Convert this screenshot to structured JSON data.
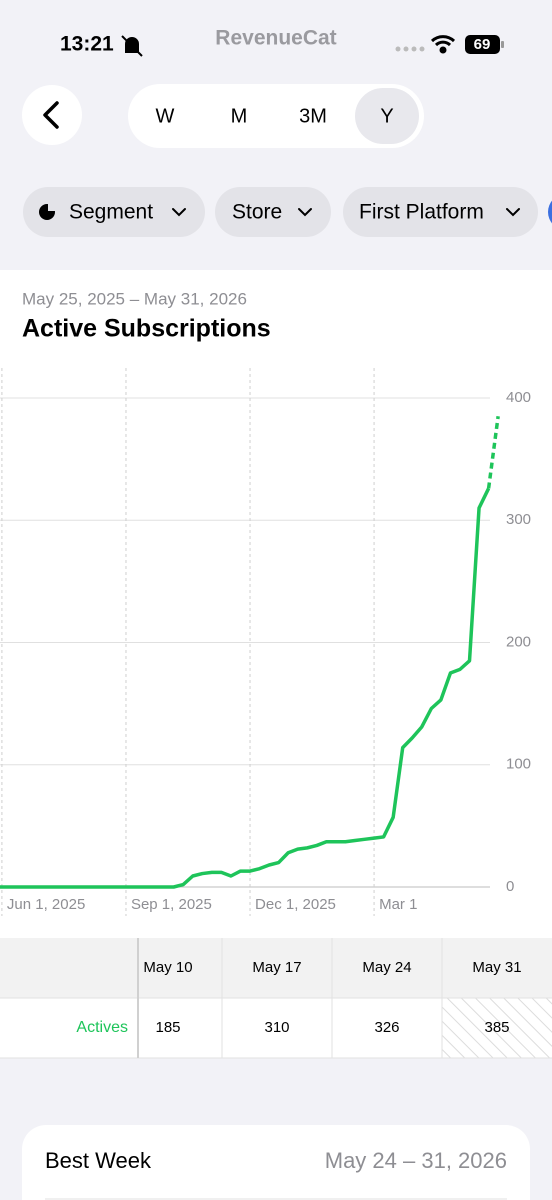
{
  "status_bar": {
    "time": "13:21",
    "app": "RevenueCat",
    "battery": "69"
  },
  "period_tabs": [
    "W",
    "M",
    "3M",
    "Y"
  ],
  "selected_period": 3,
  "filters": [
    "Segment",
    "Store",
    "First Platform"
  ],
  "chart_data": {
    "type": "line",
    "subtitle": "May 25, 2025 – May 31, 2026",
    "title": "Active Subscriptions",
    "x": [
      0,
      1,
      2,
      3,
      4,
      5,
      6,
      7,
      8,
      9,
      10,
      11,
      12,
      13,
      14,
      15,
      16,
      17,
      18,
      19,
      20,
      21,
      22,
      23,
      24,
      25,
      26,
      27,
      28,
      29,
      30,
      31,
      32,
      33,
      34,
      35,
      36,
      37,
      38,
      39,
      40,
      41,
      42,
      43,
      44,
      45,
      46,
      47,
      48,
      49,
      50,
      51,
      52,
      53
    ],
    "series": [
      {
        "color": "#1ec45a",
        "values": [
          0,
          0,
          0,
          0,
          0,
          0,
          0,
          0,
          0,
          0,
          0,
          0,
          0,
          0,
          0,
          0,
          0,
          0,
          0,
          0,
          2,
          9,
          11,
          12,
          12,
          9,
          13,
          13,
          15,
          18,
          20,
          28,
          31,
          32,
          34,
          37,
          37,
          37,
          38,
          39,
          40,
          41,
          57,
          114,
          122,
          131,
          146,
          153,
          175,
          178,
          185,
          310,
          326,
          385
        ]
      }
    ],
    "xlim": [
      0.8,
      53.3
    ],
    "xticks": [
      {
        "value": 1,
        "label": "Jun 1, 2025"
      },
      {
        "value": 14,
        "label": "Sep 1, 2025"
      },
      {
        "value": 27,
        "label": "Dec 1, 2025"
      },
      {
        "value": 40,
        "label": "Mar 1"
      }
    ],
    "ylim": [
      0,
      420
    ],
    "yticks": [
      0,
      100,
      200,
      300,
      400
    ],
    "grid": true,
    "last_segment_dashed": true
  },
  "table": {
    "columns": [
      "May 10",
      "May 17",
      "May 24",
      "May 31"
    ],
    "rows": [
      {
        "label": "Actives",
        "cells": [
          "185",
          "310",
          "326",
          "385"
        ]
      }
    ]
  },
  "best_week": {
    "label": "Best Week",
    "value": "May 24 – 31, 2026"
  }
}
